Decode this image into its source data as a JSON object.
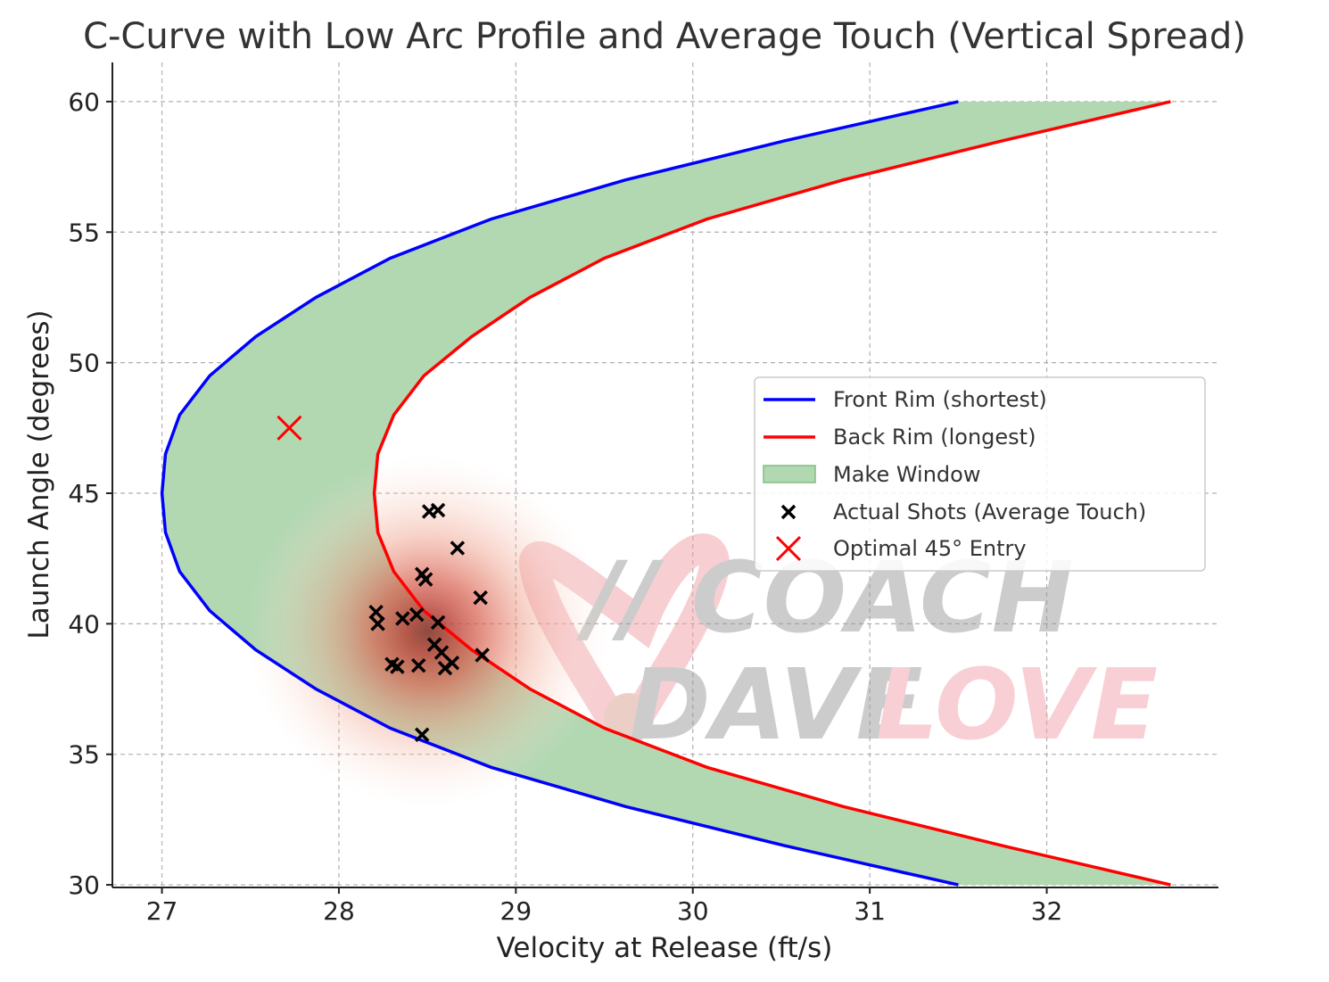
{
  "chart_data": {
    "type": "line",
    "title": "C-Curve with Low Arc Profile and Average Touch (Vertical Spread)",
    "xlabel": "Velocity at Release (ft/s)",
    "ylabel": "Launch Angle (degrees)",
    "xlim": [
      26.72,
      32.97
    ],
    "ylim": [
      29.9,
      61.5
    ],
    "x_ticks": [
      27,
      28,
      29,
      30,
      31,
      32
    ],
    "y_ticks": [
      30,
      35,
      40,
      45,
      50,
      55,
      60
    ],
    "grid": true,
    "legend_position": "center-right",
    "series": [
      {
        "name": "Front Rim (shortest)",
        "kind": "line",
        "color": "#0000ff",
        "x": [
          31.5,
          30.52,
          29.62,
          28.86,
          28.29,
          27.87,
          27.53,
          27.27,
          27.1,
          27.02,
          27.0,
          27.02,
          27.1,
          27.27,
          27.53,
          27.87,
          28.29,
          28.86,
          29.62,
          30.52,
          31.5
        ],
        "y": [
          60,
          58.5,
          57,
          55.5,
          54,
          52.5,
          51,
          49.5,
          48,
          46.5,
          45,
          43.5,
          42,
          40.5,
          39,
          37.5,
          36,
          34.5,
          33,
          31.5,
          30
        ]
      },
      {
        "name": "Back Rim (longest)",
        "kind": "line",
        "color": "#ff0000",
        "x": [
          32.7,
          31.75,
          30.85,
          30.08,
          29.5,
          29.08,
          28.75,
          28.48,
          28.31,
          28.22,
          28.2,
          28.22,
          28.31,
          28.48,
          28.75,
          29.08,
          29.5,
          30.08,
          30.85,
          31.75,
          32.7
        ],
        "y": [
          60,
          58.5,
          57,
          55.5,
          54,
          52.5,
          51,
          49.5,
          48,
          46.5,
          45,
          43.5,
          42,
          40.5,
          39,
          37.5,
          36,
          34.5,
          33,
          31.5,
          30
        ]
      },
      {
        "name": "Make Window",
        "kind": "fill_between",
        "color": "#b2d8b2",
        "between": [
          "Front Rim (shortest)",
          "Back Rim (longest)"
        ]
      },
      {
        "name": "Actual Shots (Average Touch)",
        "kind": "scatter",
        "marker": "x",
        "color": "#000000",
        "points": [
          [
            28.51,
            44.3
          ],
          [
            28.56,
            44.35
          ],
          [
            28.67,
            42.9
          ],
          [
            28.8,
            41.0
          ],
          [
            28.47,
            41.9
          ],
          [
            28.49,
            41.7
          ],
          [
            28.21,
            40.45
          ],
          [
            28.22,
            40.0
          ],
          [
            28.36,
            40.2
          ],
          [
            28.44,
            40.35
          ],
          [
            28.56,
            40.05
          ],
          [
            28.54,
            39.2
          ],
          [
            28.58,
            38.9
          ],
          [
            28.81,
            38.8
          ],
          [
            28.3,
            38.45
          ],
          [
            28.33,
            38.35
          ],
          [
            28.45,
            38.4
          ],
          [
            28.6,
            38.3
          ],
          [
            28.64,
            38.5
          ],
          [
            28.47,
            35.75
          ]
        ]
      },
      {
        "name": "Optimal 45° Entry",
        "kind": "scatter",
        "marker": "x",
        "color": "#ff0000",
        "points": [
          [
            27.72,
            47.5
          ]
        ]
      }
    ],
    "density": {
      "center": [
        28.5,
        39.7
      ],
      "spread": [
        0.12,
        1.6
      ]
    }
  },
  "watermark": {
    "line1": "// COACH",
    "line2a": "DAVE",
    "line2b": "LOVE"
  },
  "colors": {
    "front_rim": "#0000ff",
    "back_rim": "#ff0000",
    "make_window": "#b2d8b2",
    "shots": "#000000",
    "optimal": "#ff0000"
  }
}
